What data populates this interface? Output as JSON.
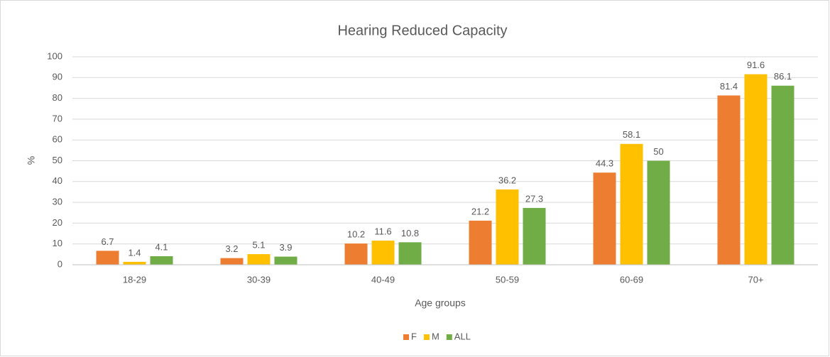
{
  "chart_data": {
    "type": "bar",
    "title": "Hearing Reduced Capacity",
    "x_label": "Age groups",
    "y_label": "%",
    "categories": [
      "18-29",
      "30-39",
      "40-49",
      "50-59",
      "60-69",
      "70+"
    ],
    "series": [
      {
        "name": "F",
        "color": "#ed7d31",
        "values": [
          6.7,
          3.2,
          10.2,
          21.2,
          44.3,
          81.4
        ]
      },
      {
        "name": "M",
        "color": "#ffc000",
        "values": [
          1.4,
          5.1,
          11.6,
          36.2,
          58.1,
          91.6
        ]
      },
      {
        "name": "ALL",
        "color": "#70ad47",
        "values": [
          4.1,
          3.9,
          10.8,
          27.3,
          50,
          86.1
        ]
      }
    ],
    "ylim": [
      0,
      100
    ],
    "yticks": [
      0,
      10,
      20,
      30,
      40,
      50,
      60,
      70,
      80,
      90,
      100
    ],
    "grid": true,
    "legend": "bottom"
  }
}
